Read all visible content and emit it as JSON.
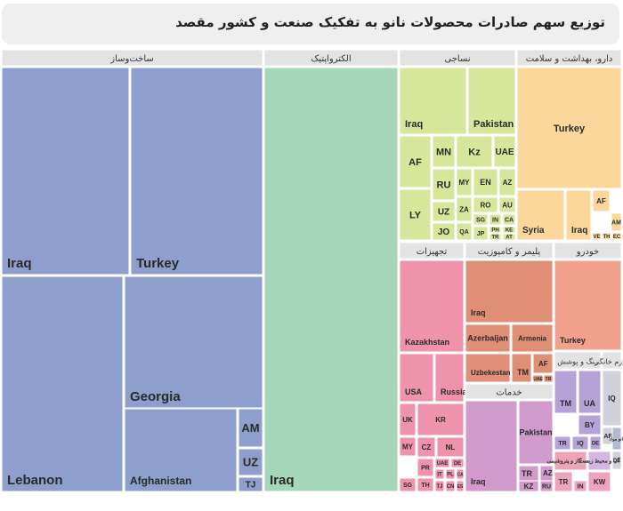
{
  "title": "توزیع سهم صادرات محصولات نانو به تفکیک صنعت و کشور مقصد",
  "chart_data": {
    "type": "treemap",
    "title": "توزیع سهم صادرات محصولات نانو به تفکیک صنعت و کشور مقصد",
    "groups": [
      {
        "name": "ساخت‌وساز",
        "color": "#8e9fcd",
        "items": [
          {
            "label": "Iraq",
            "value": 21.0
          },
          {
            "label": "Turkey",
            "value": 21.0
          },
          {
            "label": "Lebanon",
            "value": 34.0
          },
          {
            "label": "Georgia",
            "value": 24.0
          },
          {
            "label": "Afghanistan",
            "value": 16.0
          },
          {
            "label": "AM",
            "value": 1.0
          },
          {
            "label": "UZ",
            "value": 0.8
          },
          {
            "label": "TJ",
            "value": 0.4
          }
        ]
      },
      {
        "name": "الکترواپتیک",
        "color": "#a7d7bb",
        "items": [
          {
            "label": "Iraq",
            "value": 68.0
          }
        ]
      },
      {
        "name": "نساجی",
        "color": "#d6e79b",
        "items": [
          {
            "label": "Iraq",
            "value": 4.2
          },
          {
            "label": "Pakistan",
            "value": 3.2
          },
          {
            "label": "AF",
            "value": 1.5
          },
          {
            "label": "LY",
            "value": 1.3
          },
          {
            "label": "MN",
            "value": 1.3
          },
          {
            "label": "RU",
            "value": 1.2
          },
          {
            "label": "UZ",
            "value": 0.8
          },
          {
            "label": "JO",
            "value": 0.7
          },
          {
            "label": "Kz",
            "value": 0.8
          },
          {
            "label": "UAE",
            "value": 0.8
          },
          {
            "label": "MY",
            "value": 0.5
          },
          {
            "label": "EN",
            "value": 0.5
          },
          {
            "label": "AZ",
            "value": 0.5
          },
          {
            "label": "ZA",
            "value": 0.5
          },
          {
            "label": "RO",
            "value": 0.4
          },
          {
            "label": "AU",
            "value": 0.4
          },
          {
            "label": "QA",
            "value": 0.4
          },
          {
            "label": "JP",
            "value": 0.4
          },
          {
            "label": "SG",
            "value": 0.3
          },
          {
            "label": "IN",
            "value": 0.3
          },
          {
            "label": "CA",
            "value": 0.3
          },
          {
            "label": "PH",
            "value": 0.2
          },
          {
            "label": "KE",
            "value": 0.2
          },
          {
            "label": "TR",
            "value": 0.2
          },
          {
            "label": "AT",
            "value": 0.2
          }
        ]
      },
      {
        "name": "دارو، بهداشت و سلامت",
        "color": "#fbd79c",
        "items": [
          {
            "label": "Turkey",
            "value": 9.0
          },
          {
            "label": "Syria",
            "value": 2.5
          },
          {
            "label": "Iraq",
            "value": 1.5
          },
          {
            "label": "AF",
            "value": 0.6
          },
          {
            "label": "AM",
            "value": 0.4
          },
          {
            "label": "VE",
            "value": 0.2
          },
          {
            "label": "TH",
            "value": 0.2
          },
          {
            "label": "EC",
            "value": 0.2
          }
        ]
      },
      {
        "name": "تجهیزات",
        "color": "#ee93ab",
        "items": [
          {
            "label": "Kazakhstan",
            "value": 7.0
          },
          {
            "label": "USA",
            "value": 2.6
          },
          {
            "label": "Russia",
            "value": 2.5
          },
          {
            "label": "UK",
            "value": 1.2
          },
          {
            "label": "KR",
            "value": 1.0
          },
          {
            "label": "CZ",
            "value": 0.6
          },
          {
            "label": "NL",
            "value": 0.5
          },
          {
            "label": "MY",
            "value": 0.5
          },
          {
            "label": "PR",
            "value": 0.4
          },
          {
            "label": "UAE",
            "value": 0.4
          },
          {
            "label": "DE",
            "value": 0.4
          },
          {
            "label": "IT",
            "value": 0.3
          },
          {
            "label": "PL",
            "value": 0.3
          },
          {
            "label": "CN",
            "value": 0.3
          },
          {
            "label": "SG",
            "value": 0.3
          },
          {
            "label": "TH",
            "value": 0.3
          },
          {
            "label": "TJ",
            "value": 0.2
          },
          {
            "label": "CA",
            "value": 0.2
          },
          {
            "label": "ES",
            "value": 0.2
          }
        ]
      },
      {
        "name": "پلیمر و کامپوزیت",
        "color": "#e18e76",
        "items": [
          {
            "label": "Iraq",
            "value": 6.5
          },
          {
            "label": "Azerbaijan",
            "value": 2.0
          },
          {
            "label": "Armenia",
            "value": 2.0
          },
          {
            "label": "Uzbekestan",
            "value": 2.0
          },
          {
            "label": "TM",
            "value": 0.6
          },
          {
            "label": "AF",
            "value": 0.5
          },
          {
            "label": "UAE",
            "value": 0.3
          },
          {
            "label": "TR",
            "value": 0.3
          }
        ]
      },
      {
        "name": "خدمات",
        "color": "#d09acb",
        "items": [
          {
            "label": "Iraq",
            "value": 6.0
          },
          {
            "label": "Pakistan",
            "value": 2.3
          },
          {
            "label": "TR",
            "value": 1.2
          },
          {
            "label": "AZ",
            "value": 1.0
          },
          {
            "label": "KZ",
            "value": 0.6
          },
          {
            "label": "RU",
            "value": 0.5
          }
        ]
      },
      {
        "name": "خودرو",
        "color": "#f2a18d",
        "items": [
          {
            "label": "Turkey",
            "value": 6.0
          }
        ]
      },
      {
        "name": "رنگ و پوشش",
        "color": "#b5a3d7",
        "items": [
          {
            "label": "TM",
            "value": 1.6
          },
          {
            "label": "UA",
            "value": 1.0
          },
          {
            "label": "BY",
            "value": 0.8
          },
          {
            "label": "TR",
            "value": 0.5
          },
          {
            "label": "IQ",
            "value": 0.5
          },
          {
            "label": "DE",
            "value": 0.4
          }
        ]
      },
      {
        "name": "نفت، گاز و پتروشیمی",
        "color": "#eda4ba",
        "items": [
          {
            "label": "نفت، گاز و پتروشیمی",
            "value": 1.8
          },
          {
            "label": "TR",
            "value": 0.5
          },
          {
            "label": "IN",
            "value": 0.4
          },
          {
            "label": "KW",
            "value": 0.5
          }
        ]
      },
      {
        "name": "لوازم خانگی",
        "color": "#d1d1d9",
        "items": [
          {
            "label": "IQ",
            "value": 0.8
          },
          {
            "label": "AF",
            "value": 0.4
          },
          {
            "label": "DE",
            "value": 0.4
          }
        ]
      },
      {
        "name": "آب و محیط زیست",
        "color": "#d5b6e2",
        "items": [
          {
            "label": "آب و محیط زیست",
            "value": 0.8
          }
        ]
      },
      {
        "name": "نانو مواد",
        "color": "#b3b9cf",
        "items": [
          {
            "label": "نانو مواد",
            "value": 0.5
          }
        ]
      }
    ]
  }
}
